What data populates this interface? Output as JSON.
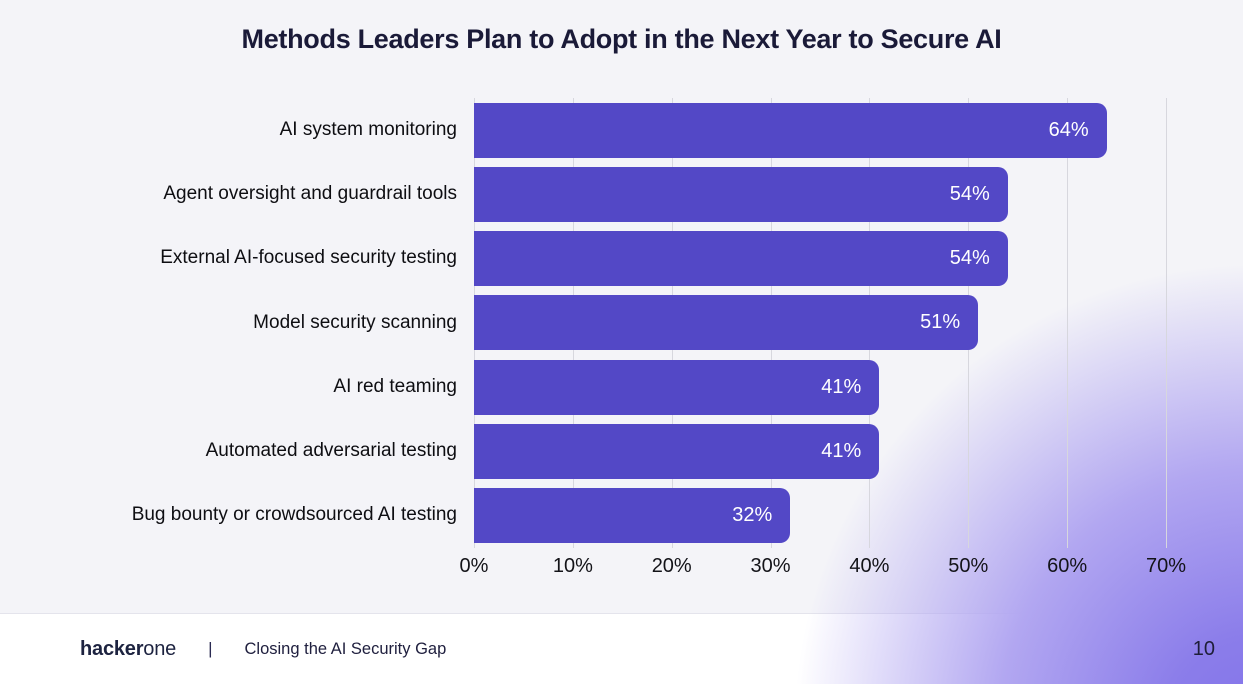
{
  "title": "Methods Leaders Plan to Adopt in the Next Year to Secure AI",
  "colors": {
    "background": "#F4F4F8",
    "bar_accent": "#5348C6",
    "title_text": "#1A1A38",
    "gradient_purple": "#8374E9",
    "gridline": "#D7D7DE",
    "footer_background": "#FFFFFF"
  },
  "chart_data": {
    "type": "bar",
    "orientation": "horizontal",
    "title": "Methods Leaders Plan to Adopt in the Next Year to Secure AI",
    "categories": [
      "AI system monitoring",
      "Agent oversight and guardrail tools",
      "External AI-focused security testing",
      "Model security scanning",
      "AI red teaming",
      "Automated adversarial testing",
      "Bug bounty or crowdsourced AI testing"
    ],
    "values": [
      64,
      54,
      54,
      51,
      41,
      41,
      32
    ],
    "value_labels": [
      "64%",
      "54%",
      "54%",
      "51%",
      "41%",
      "41%",
      "32%"
    ],
    "x_ticks": [
      "0%",
      "10%",
      "20%",
      "30%",
      "40%",
      "50%",
      "60%",
      "70%"
    ],
    "xlim": [
      0,
      70
    ],
    "xlabel": "",
    "ylabel": "",
    "grid": true,
    "legend": false,
    "bar_color": "#5348C6"
  },
  "footer": {
    "logo_bold": "hacker",
    "logo_light": "one",
    "divider": "|",
    "report_title": "Closing the AI Security Gap",
    "page_number": "10"
  }
}
